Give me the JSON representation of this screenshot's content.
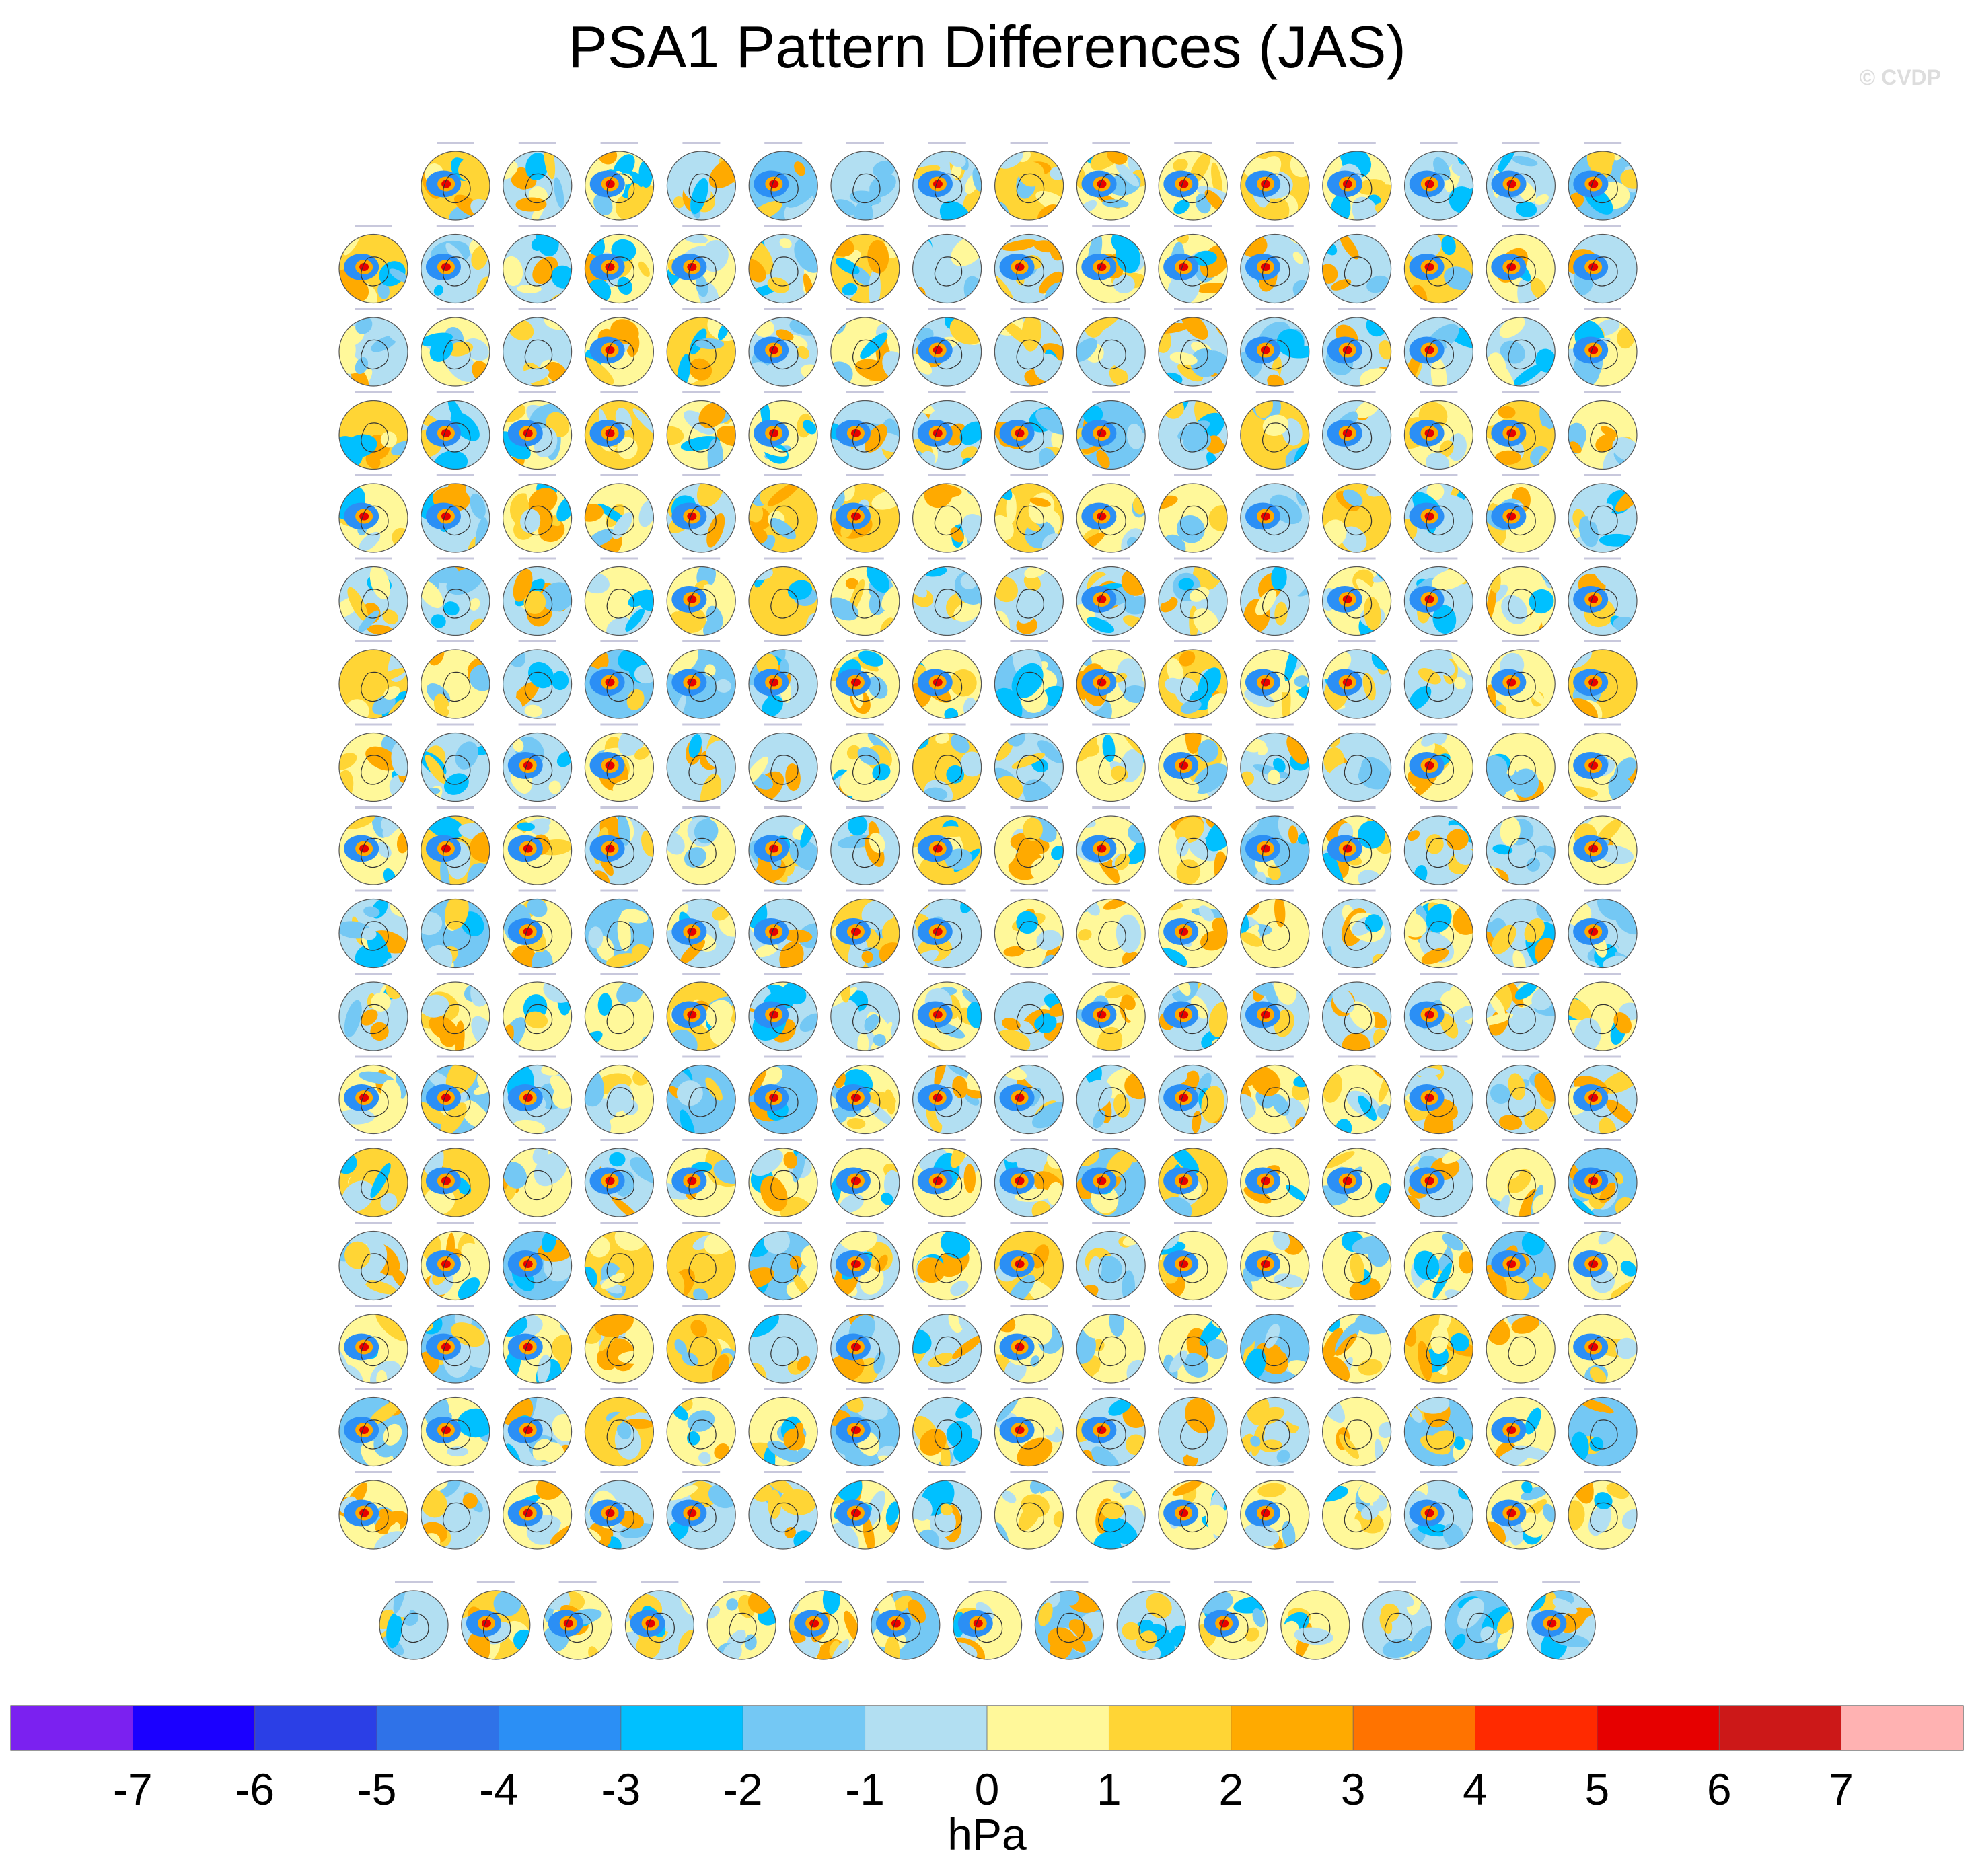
{
  "chart_data": {
    "type": "heatmap",
    "title": "PSA1 Pattern Differences (JAS)",
    "watermark": "© CVDP",
    "panel_description": "Small-multiple polar-stereographic maps of the Southern Hemisphere (PSA1 pattern differences vs. observations); panel titles too small to read",
    "panel_rows": [
      15,
      16,
      16,
      16,
      16,
      16,
      16,
      16,
      16,
      16,
      16,
      16,
      16,
      16,
      16,
      16,
      16,
      15
    ],
    "panel_count": 286,
    "colorbar": {
      "label": "hPa",
      "tick_labels": [
        "-7",
        "-6",
        "-5",
        "-4",
        "-3",
        "-2",
        "-1",
        "0",
        "1",
        "2",
        "3",
        "4",
        "5",
        "6",
        "7"
      ],
      "colors": [
        "#7b21f0",
        "#1b00ff",
        "#2b3fe6",
        "#2f72e8",
        "#2b8ff5",
        "#00c0ff",
        "#74c8f4",
        "#b2dff2",
        "#fff89a",
        "#ffd535",
        "#ffaa00",
        "#ff7300",
        "#ff2a00",
        "#e60000",
        "#cc1818",
        "#ffb2b2"
      ]
    }
  }
}
